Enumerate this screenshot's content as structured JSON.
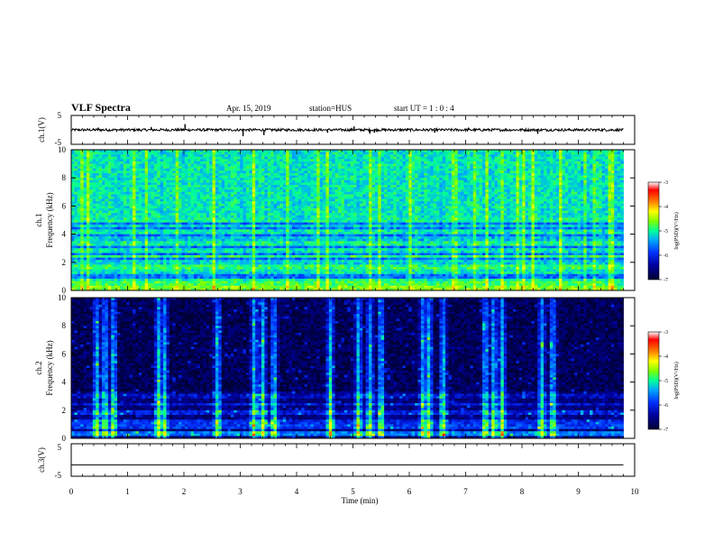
{
  "header": {
    "title": "VLF Spectra",
    "date": "Apr. 15, 2019",
    "station": "station=HUS",
    "start_ut": "start  UT =   1 : 0  : 4"
  },
  "colors": {
    "spectrum_stops": [
      "#000033",
      "#0000a0",
      "#0033ff",
      "#00a5ff",
      "#00ff9a",
      "#7fff00",
      "#ffff00",
      "#ff8000",
      "#ff0000",
      "#ffffff"
    ],
    "waveform": "#000000",
    "axis": "#000000"
  },
  "chart_data": [
    {
      "type": "line",
      "panel": "ch1-waveform",
      "ylabel": "ch.1(V)",
      "ylim": [
        -5,
        5
      ],
      "yticks": [
        "5",
        "-5"
      ],
      "xlim": [
        0,
        10
      ],
      "series": [
        {
          "x": [
            0,
            9.8
          ],
          "y": [
            0,
            0
          ]
        }
      ],
      "spikes": [
        {
          "t": 2.02,
          "v": 2.0
        },
        {
          "t": 3.05,
          "v": -2.2
        },
        {
          "t": 3.42,
          "v": -1.8
        },
        {
          "t": 1.42,
          "v": 1.0
        },
        {
          "t": 4.55,
          "v": -1.0
        },
        {
          "t": 5.3,
          "v": -1.3
        },
        {
          "t": 5.38,
          "v": -1.0
        },
        {
          "t": 5.02,
          "v": 1.2
        },
        {
          "t": 8.28,
          "v": -1.4
        },
        {
          "t": 6.45,
          "v": -1.0
        },
        {
          "t": 0.48,
          "v": 0.8
        },
        {
          "t": 7.05,
          "v": 0.8
        }
      ]
    },
    {
      "type": "heatmap",
      "panel": "ch1-spectrogram",
      "ylabel": "ch.1\nFrequency (kHz)",
      "ylabel_lines": [
        "ch.1",
        "Frequency (kHz)"
      ],
      "yticks": [
        "0",
        "2",
        "4",
        "6",
        "8",
        "10"
      ],
      "ylim": [
        0,
        10
      ],
      "xlim": [
        0,
        10
      ],
      "data_end_min": 9.8,
      "background_level": -5.7,
      "upper_level": -5.2,
      "bands_khz": [
        {
          "f": 0.2,
          "level": -4.7
        },
        {
          "f": 0.5,
          "level": -4.9
        },
        {
          "f": 0.75,
          "level": -5.1
        },
        {
          "f": 1.3,
          "level": -5.2
        },
        {
          "f": 1.7,
          "level": -5.0
        },
        {
          "f": 2.0,
          "level": -5.3
        },
        {
          "f": 2.4,
          "level": -5.0
        },
        {
          "f": 2.85,
          "level": -5.2
        },
        {
          "f": 3.3,
          "level": -5.1
        },
        {
          "f": 3.7,
          "level": -5.4
        },
        {
          "f": 4.2,
          "level": -5.2
        },
        {
          "f": 4.6,
          "level": -5.3
        },
        {
          "f": 5.0,
          "level": -5.1
        }
      ],
      "colorbar": {
        "label": "log(PSD)(V²/Hz)",
        "ticks": [
          "-3",
          "-4",
          "-5",
          "-6",
          "-7"
        ],
        "range": [
          -7,
          -3
        ]
      }
    },
    {
      "type": "heatmap",
      "panel": "ch2-spectrogram",
      "ylabel": "ch.2\nFrequency (kHz)",
      "ylabel_lines": [
        "ch.2",
        "Frequency (kHz)"
      ],
      "yticks": [
        "0",
        "2",
        "4",
        "6",
        "8",
        "10"
      ],
      "ylim": [
        0,
        10
      ],
      "xlim": [
        0,
        10
      ],
      "data_end_min": 9.8,
      "background_level": -6.6,
      "bursts_min": [
        0.45,
        0.6,
        0.75,
        1.55,
        1.65,
        2.6,
        3.25,
        3.4,
        3.6,
        4.6,
        5.1,
        5.3,
        5.5,
        6.25,
        6.35,
        6.6,
        7.35,
        7.5,
        7.65,
        8.35,
        8.55
      ],
      "bands_khz": [
        {
          "f": 0.3,
          "level": -5.6
        },
        {
          "f": 0.8,
          "level": -5.9
        },
        {
          "f": 1.2,
          "level": -6.0
        },
        {
          "f": 1.8,
          "level": -6.1
        },
        {
          "f": 2.4,
          "level": -6.2
        },
        {
          "f": 3.0,
          "level": -6.3
        }
      ],
      "colorbar": {
        "label": "log(PSD)(V²/Hz)",
        "ticks": [
          "-3",
          "-4",
          "-5",
          "-6",
          "-7"
        ],
        "range": [
          -7,
          -3
        ]
      }
    },
    {
      "type": "line",
      "panel": "ch3-waveform",
      "ylabel": "ch.3(V)",
      "ylim": [
        -5,
        5
      ],
      "yticks": [
        "5",
        "-5"
      ],
      "xlim": [
        0,
        10
      ],
      "series": [
        {
          "x": [
            0,
            9.8
          ],
          "y": [
            -1.5,
            -1.5
          ]
        }
      ]
    }
  ],
  "xaxis": {
    "label": "Time (min)",
    "ticks": [
      "0",
      "1",
      "2",
      "3",
      "4",
      "5",
      "6",
      "7",
      "8",
      "9",
      "10"
    ],
    "range": [
      0,
      10
    ]
  }
}
